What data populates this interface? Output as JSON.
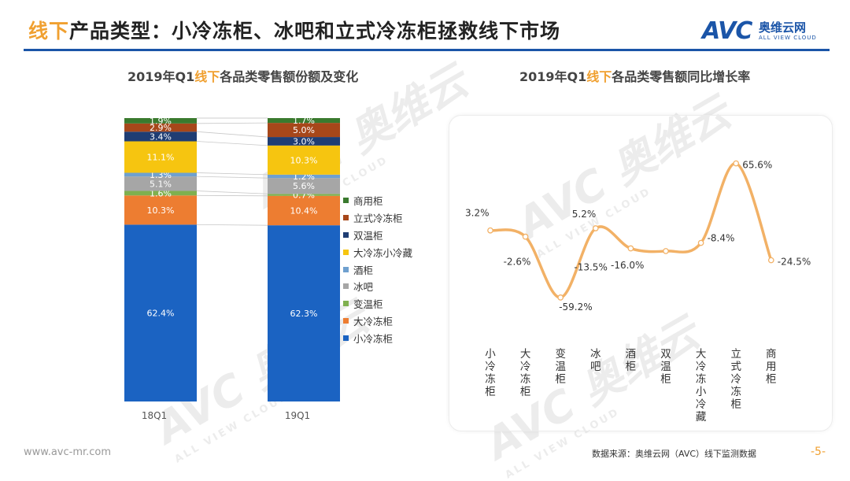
{
  "header": {
    "title_hl": "线下",
    "title_rest": "产品类型：小冷冻柜、冰吧和立式冷冻柜拯救线下市场",
    "logo_mark": "AVC",
    "logo_cn": "奥维云网",
    "logo_en": "ALL VIEW CLOUD"
  },
  "watermark": {
    "mark": "AVC 奥维云",
    "en": "ALL VIEW CLOUD"
  },
  "footer": {
    "website": "www.avc-mr.com",
    "source": "数据来源：奥维云网（AVC）线下监测数据",
    "page": "-5-"
  },
  "colors": {
    "商用柜": "#3a7a2e",
    "立式冷冻柜": "#a7471a",
    "双温柜": "#1f3d73",
    "大冷冻小冷藏": "#f6c510",
    "酒柜": "#6fa0cf",
    "冰吧": "#a6a6a6",
    "变温柜": "#7fb04f",
    "大冷冻柜": "#ed7d31",
    "小冷冻柜": "#1b63c2",
    "line": "#f2b166",
    "accent": "#f0a030"
  },
  "chart_data": [
    {
      "type": "bar",
      "stacked": true,
      "normalized": true,
      "title_pre": "2019年Q1",
      "title_hl": "线下",
      "title_post": "各品类零售额份额及变化",
      "categories": [
        "18Q1",
        "19Q1"
      ],
      "series": [
        {
          "name": "小冷冻柜",
          "values": [
            62.4,
            62.3
          ]
        },
        {
          "name": "大冷冻柜",
          "values": [
            10.3,
            10.4
          ]
        },
        {
          "name": "变温柜",
          "values": [
            1.6,
            0.7
          ]
        },
        {
          "name": "冰吧",
          "values": [
            5.1,
            5.6
          ]
        },
        {
          "name": "酒柜",
          "values": [
            1.3,
            1.2
          ]
        },
        {
          "name": "大冷冻小冷藏",
          "values": [
            11.1,
            10.3
          ]
        },
        {
          "name": "双温柜",
          "values": [
            3.4,
            3.0
          ]
        },
        {
          "name": "立式冷冻柜",
          "values": [
            2.9,
            5.0
          ]
        },
        {
          "name": "商用柜",
          "values": [
            1.9,
            1.7
          ]
        }
      ],
      "value_labels": {
        "小冷冻柜": [
          "62.4%",
          "62.3%"
        ],
        "大冷冻柜": [
          "10.3%",
          "10.4%"
        ],
        "变温柜": [
          "1.6%",
          "0.7%"
        ],
        "冰吧": [
          "5.1%",
          "5.6%"
        ],
        "酒柜": [
          "1.3%",
          "1.2%"
        ],
        "大冷冻小冷藏": [
          "11.1%",
          "10.3%"
        ],
        "双温柜": [
          "3.4%",
          "3.0%"
        ],
        "立式冷冻柜": [
          "2.9%",
          "5.0%"
        ],
        "商用柜": [
          "1.9%",
          "1.7%"
        ]
      },
      "legend_order": [
        "商用柜",
        "立式冷冻柜",
        "双温柜",
        "大冷冻小冷藏",
        "酒柜",
        "冰吧",
        "变温柜",
        "大冷冻柜",
        "小冷冻柜"
      ],
      "legend_position": "right"
    },
    {
      "type": "line",
      "smooth": true,
      "title_pre": "2019年Q1",
      "title_hl": "线下",
      "title_post": "各品类零售额同比增长率",
      "categories": [
        "小冷冻柜",
        "大冷冻柜",
        "变温柜",
        "冰吧",
        "酒柜",
        "双温柜",
        "大冷冻小冷藏",
        "立式冷冻柜",
        "商用柜"
      ],
      "values": [
        3.2,
        -2.6,
        -59.2,
        5.2,
        -13.5,
        -16.0,
        -8.4,
        65.6,
        -24.5
      ],
      "value_labels": [
        "3.2%",
        "-2.6%",
        "-59.2%",
        "5.2%",
        "-13.5%",
        "-16.0%",
        "-8.4%",
        "65.6%",
        "-24.5%"
      ],
      "grid": false,
      "legend": false
    }
  ]
}
